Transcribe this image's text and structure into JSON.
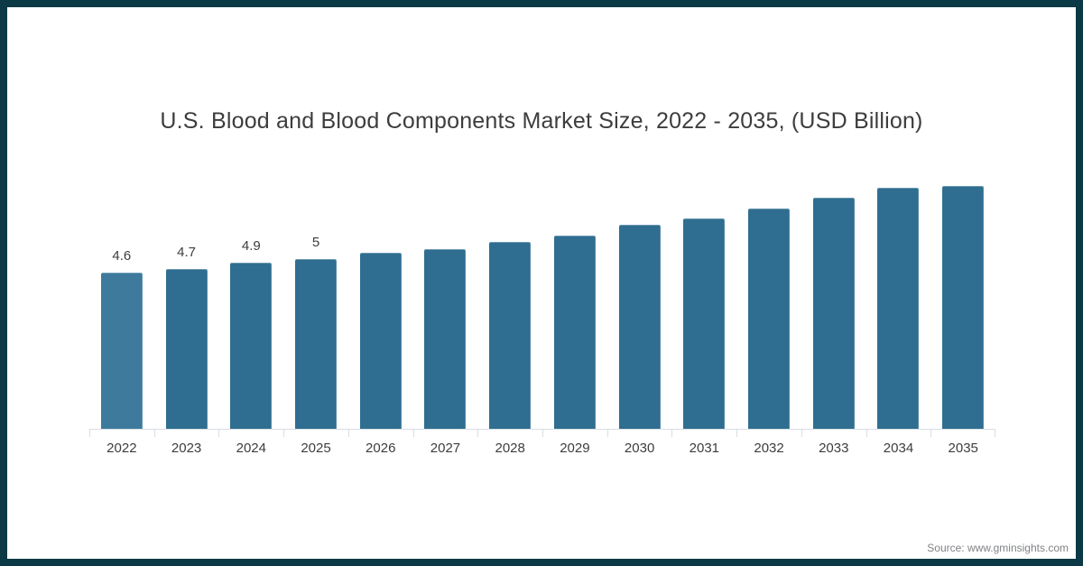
{
  "title": "U.S. Blood and Blood Components Market Size, 2022 - 2035, (USD Billion)",
  "source": "Source: www.gminsights.com",
  "colors": {
    "frame_border": "#0b3945",
    "background": "#ffffff",
    "bar": "#2f6e90",
    "bar_first": "#3d7a9c",
    "axis": "#d8dde3",
    "text": "#3d3d3d",
    "source_text": "#808285"
  },
  "chart_data": {
    "type": "bar",
    "title": "U.S. Blood and Blood Components Market Size, 2022 - 2035, (USD Billion)",
    "categories": [
      "2022",
      "2023",
      "2024",
      "2025",
      "2026",
      "2027",
      "2028",
      "2029",
      "2030",
      "2031",
      "2032",
      "2033",
      "2034",
      "2035"
    ],
    "values": [
      4.6,
      4.7,
      4.9,
      5.0,
      5.2,
      5.3,
      5.5,
      5.7,
      6.0,
      6.2,
      6.5,
      6.8,
      7.1,
      7.4
    ],
    "data_labels": [
      "4.6",
      "4.7",
      "4.9",
      "5",
      "",
      "",
      "",
      "",
      "",
      "",
      "",
      "",
      "",
      ""
    ],
    "xlabel": "",
    "ylabel": "",
    "units": "USD Billion",
    "ylim": [
      0,
      7.8
    ],
    "grid": false,
    "legend": "none"
  }
}
